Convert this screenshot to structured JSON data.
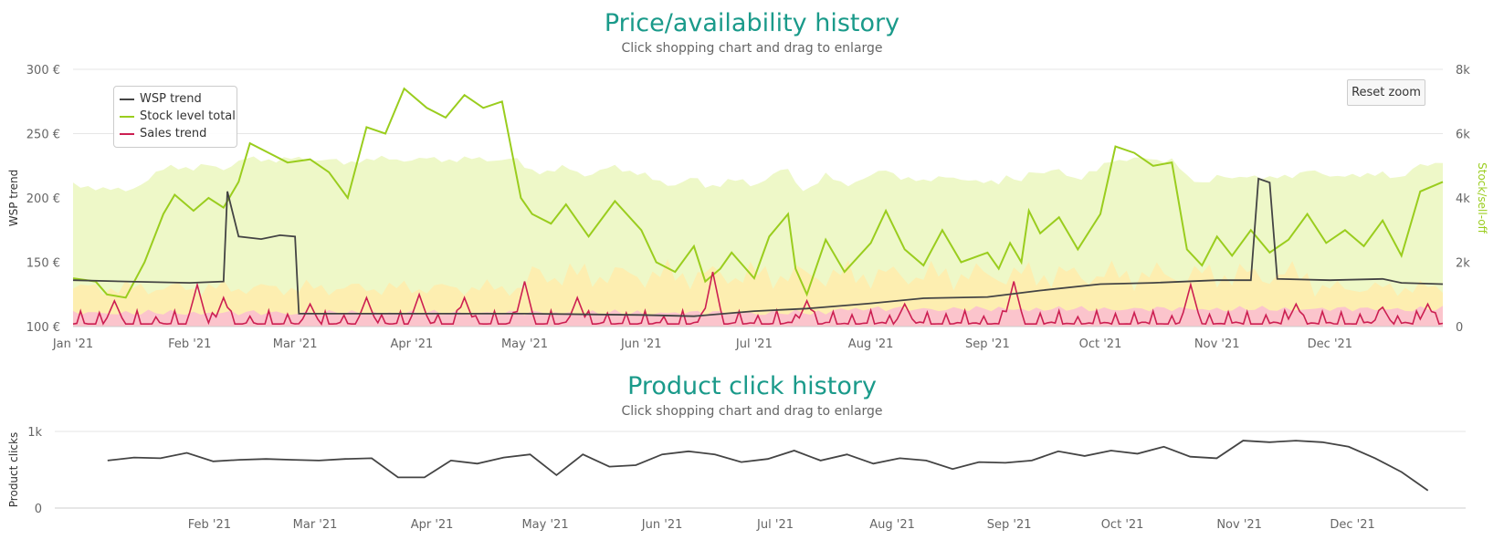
{
  "chart1": {
    "title": "Price/availability history",
    "subtitle": "Click shopping chart and drag to enlarge",
    "ylabel_left": "WSP trend",
    "ylabel_right": "Stock/sell-off",
    "y_left_ticks": [
      "300 €",
      "250 €",
      "200 €",
      "150 €",
      "100 €"
    ],
    "y_right_ticks": [
      "8k",
      "6k",
      "4k",
      "2k",
      "0"
    ],
    "x_ticks": [
      "Jan '21",
      "Feb '21",
      "Mar '21",
      "Apr '21",
      "May '21",
      "Jun '21",
      "Jul '21",
      "Aug '21",
      "Sep '21",
      "Oct '21",
      "Nov '21",
      "Dec '21"
    ],
    "reset_zoom_label": "Reset zoom",
    "legend": [
      {
        "name": "WSP trend",
        "color": "#444444"
      },
      {
        "name": "Stock level total",
        "color": "#9acd1e"
      },
      {
        "name": "Sales trend",
        "color": "#cc1f52"
      }
    ]
  },
  "chart2": {
    "title": "Product click history",
    "subtitle": "Click shopping chart and drag to enlarge",
    "ylabel": "Product clicks",
    "y_ticks": [
      "1k",
      "0"
    ],
    "x_ticks": [
      "Feb '21",
      "Mar '21",
      "Apr '21",
      "May '21",
      "Jun '21",
      "Jul '21",
      "Aug '21",
      "Sep '21",
      "Oct '21",
      "Nov '21",
      "Dec '21"
    ]
  },
  "chart_data": [
    {
      "type": "line",
      "title": "Price/availability history",
      "x_range": [
        "2021-01-01",
        "2021-12-31"
      ],
      "y_left": {
        "label": "WSP trend",
        "range": [
          100,
          300
        ],
        "unit": "€"
      },
      "y_right": {
        "label": "Stock/sell-off",
        "range": [
          0,
          8000
        ]
      },
      "series": [
        {
          "name": "WSP trend",
          "axis": "left",
          "color": "#444444",
          "points": [
            [
              "2021-01-01",
              136
            ],
            [
              "2021-01-15",
              135
            ],
            [
              "2021-02-01",
              134
            ],
            [
              "2021-02-10",
              135
            ],
            [
              "2021-02-11",
              205
            ],
            [
              "2021-02-14",
              170
            ],
            [
              "2021-02-20",
              168
            ],
            [
              "2021-02-25",
              171
            ],
            [
              "2021-03-01",
              170
            ],
            [
              "2021-03-02",
              110
            ],
            [
              "2021-03-15",
              110
            ],
            [
              "2021-04-01",
              110
            ],
            [
              "2021-05-01",
              110
            ],
            [
              "2021-06-01",
              109
            ],
            [
              "2021-06-15",
              108
            ],
            [
              "2021-07-01",
              112
            ],
            [
              "2021-07-15",
              114
            ],
            [
              "2021-08-01",
              118
            ],
            [
              "2021-08-15",
              122
            ],
            [
              "2021-09-01",
              123
            ],
            [
              "2021-09-15",
              128
            ],
            [
              "2021-10-01",
              133
            ],
            [
              "2021-10-15",
              134
            ],
            [
              "2021-11-01",
              136
            ],
            [
              "2021-11-10",
              136
            ],
            [
              "2021-11-12",
              215
            ],
            [
              "2021-11-15",
              212
            ],
            [
              "2021-11-17",
              137
            ],
            [
              "2021-12-01",
              136
            ],
            [
              "2021-12-15",
              137
            ],
            [
              "2021-12-20",
              134
            ],
            [
              "2021-12-31",
              133
            ]
          ]
        },
        {
          "name": "Stock level total",
          "axis": "right",
          "color": "#9acd1e",
          "points": [
            [
              "2021-01-01",
              1500
            ],
            [
              "2021-01-07",
              1400
            ],
            [
              "2021-01-10",
              1000
            ],
            [
              "2021-01-15",
              900
            ],
            [
              "2021-01-20",
              2000
            ],
            [
              "2021-01-25",
              3500
            ],
            [
              "2021-01-28",
              4100
            ],
            [
              "2021-02-02",
              3600
            ],
            [
              "2021-02-06",
              4000
            ],
            [
              "2021-02-10",
              3700
            ],
            [
              "2021-02-14",
              4500
            ],
            [
              "2021-02-17",
              5700
            ],
            [
              "2021-02-22",
              5400
            ],
            [
              "2021-02-27",
              5100
            ],
            [
              "2021-03-05",
              5200
            ],
            [
              "2021-03-10",
              4800
            ],
            [
              "2021-03-15",
              4000
            ],
            [
              "2021-03-20",
              6200
            ],
            [
              "2021-03-25",
              6000
            ],
            [
              "2021-03-30",
              7400
            ],
            [
              "2021-04-05",
              6800
            ],
            [
              "2021-04-10",
              6500
            ],
            [
              "2021-04-15",
              7200
            ],
            [
              "2021-04-20",
              6800
            ],
            [
              "2021-04-25",
              7000
            ],
            [
              "2021-04-30",
              4000
            ],
            [
              "2021-05-03",
              3500
            ],
            [
              "2021-05-08",
              3200
            ],
            [
              "2021-05-12",
              3800
            ],
            [
              "2021-05-18",
              2800
            ],
            [
              "2021-05-25",
              3900
            ],
            [
              "2021-06-01",
              3000
            ],
            [
              "2021-06-05",
              2000
            ],
            [
              "2021-06-10",
              1700
            ],
            [
              "2021-06-15",
              2500
            ],
            [
              "2021-06-18",
              1400
            ],
            [
              "2021-06-22",
              1800
            ],
            [
              "2021-06-25",
              2300
            ],
            [
              "2021-07-01",
              1500
            ],
            [
              "2021-07-05",
              2800
            ],
            [
              "2021-07-10",
              3500
            ],
            [
              "2021-07-12",
              1800
            ],
            [
              "2021-07-15",
              1000
            ],
            [
              "2021-07-20",
              2700
            ],
            [
              "2021-07-25",
              1700
            ],
            [
              "2021-08-01",
              2600
            ],
            [
              "2021-08-05",
              3600
            ],
            [
              "2021-08-10",
              2400
            ],
            [
              "2021-08-15",
              1900
            ],
            [
              "2021-08-20",
              3000
            ],
            [
              "2021-08-25",
              2000
            ],
            [
              "2021-09-01",
              2300
            ],
            [
              "2021-09-04",
              1800
            ],
            [
              "2021-09-07",
              2600
            ],
            [
              "2021-09-10",
              2000
            ],
            [
              "2021-09-12",
              3600
            ],
            [
              "2021-09-15",
              2900
            ],
            [
              "2021-09-20",
              3400
            ],
            [
              "2021-09-25",
              2400
            ],
            [
              "2021-10-01",
              3500
            ],
            [
              "2021-10-05",
              5600
            ],
            [
              "2021-10-10",
              5400
            ],
            [
              "2021-10-15",
              5000
            ],
            [
              "2021-10-20",
              5100
            ],
            [
              "2021-10-24",
              2400
            ],
            [
              "2021-10-28",
              1900
            ],
            [
              "2021-11-01",
              2800
            ],
            [
              "2021-11-05",
              2200
            ],
            [
              "2021-11-10",
              3000
            ],
            [
              "2021-11-15",
              2300
            ],
            [
              "2021-11-20",
              2700
            ],
            [
              "2021-11-25",
              3500
            ],
            [
              "2021-11-30",
              2600
            ],
            [
              "2021-12-05",
              3000
            ],
            [
              "2021-12-10",
              2500
            ],
            [
              "2021-12-15",
              3300
            ],
            [
              "2021-12-20",
              2200
            ],
            [
              "2021-12-25",
              4200
            ],
            [
              "2021-12-31",
              4500
            ]
          ]
        },
        {
          "name": "Sales trend",
          "axis": "right",
          "color": "#cc1f52",
          "peaks": [
            [
              "2021-01-12",
              800
            ],
            [
              "2021-02-03",
              1300
            ],
            [
              "2021-02-10",
              900
            ],
            [
              "2021-03-05",
              700
            ],
            [
              "2021-03-20",
              900
            ],
            [
              "2021-04-03",
              1000
            ],
            [
              "2021-04-15",
              900
            ],
            [
              "2021-05-01",
              1400
            ],
            [
              "2021-05-15",
              900
            ],
            [
              "2021-06-20",
              1700
            ],
            [
              "2021-07-15",
              800
            ],
            [
              "2021-08-10",
              700
            ],
            [
              "2021-09-08",
              1400
            ],
            [
              "2021-10-25",
              1300
            ],
            [
              "2021-11-22",
              700
            ],
            [
              "2021-12-15",
              600
            ],
            [
              "2021-12-27",
              700
            ]
          ]
        }
      ]
    },
    {
      "type": "line",
      "title": "Product click history",
      "y": {
        "label": "Product clicks",
        "range": [
          0,
          1000
        ]
      },
      "series": [
        {
          "name": "Product clicks",
          "color": "#444444",
          "points": [
            [
              "2021-01-05",
              620
            ],
            [
              "2021-01-12",
              660
            ],
            [
              "2021-01-19",
              650
            ],
            [
              "2021-01-26",
              720
            ],
            [
              "2021-02-02",
              610
            ],
            [
              "2021-02-09",
              630
            ],
            [
              "2021-02-16",
              640
            ],
            [
              "2021-02-23",
              630
            ],
            [
              "2021-03-02",
              620
            ],
            [
              "2021-03-09",
              640
            ],
            [
              "2021-03-16",
              650
            ],
            [
              "2021-03-23",
              400
            ],
            [
              "2021-03-30",
              400
            ],
            [
              "2021-04-06",
              620
            ],
            [
              "2021-04-13",
              580
            ],
            [
              "2021-04-20",
              660
            ],
            [
              "2021-04-27",
              700
            ],
            [
              "2021-05-04",
              430
            ],
            [
              "2021-05-11",
              700
            ],
            [
              "2021-05-18",
              540
            ],
            [
              "2021-05-25",
              560
            ],
            [
              "2021-06-01",
              700
            ],
            [
              "2021-06-08",
              740
            ],
            [
              "2021-06-15",
              700
            ],
            [
              "2021-06-22",
              600
            ],
            [
              "2021-06-29",
              640
            ],
            [
              "2021-07-06",
              750
            ],
            [
              "2021-07-13",
              620
            ],
            [
              "2021-07-20",
              700
            ],
            [
              "2021-07-27",
              580
            ],
            [
              "2021-08-03",
              650
            ],
            [
              "2021-08-10",
              620
            ],
            [
              "2021-08-17",
              510
            ],
            [
              "2021-08-24",
              600
            ],
            [
              "2021-08-31",
              590
            ],
            [
              "2021-09-07",
              620
            ],
            [
              "2021-09-14",
              740
            ],
            [
              "2021-09-21",
              680
            ],
            [
              "2021-09-28",
              750
            ],
            [
              "2021-10-05",
              710
            ],
            [
              "2021-10-12",
              800
            ],
            [
              "2021-10-19",
              670
            ],
            [
              "2021-10-26",
              650
            ],
            [
              "2021-11-02",
              880
            ],
            [
              "2021-11-09",
              860
            ],
            [
              "2021-11-16",
              880
            ],
            [
              "2021-11-23",
              860
            ],
            [
              "2021-11-30",
              800
            ],
            [
              "2021-12-07",
              650
            ],
            [
              "2021-12-14",
              470
            ],
            [
              "2021-12-21",
              230
            ]
          ]
        }
      ]
    }
  ]
}
